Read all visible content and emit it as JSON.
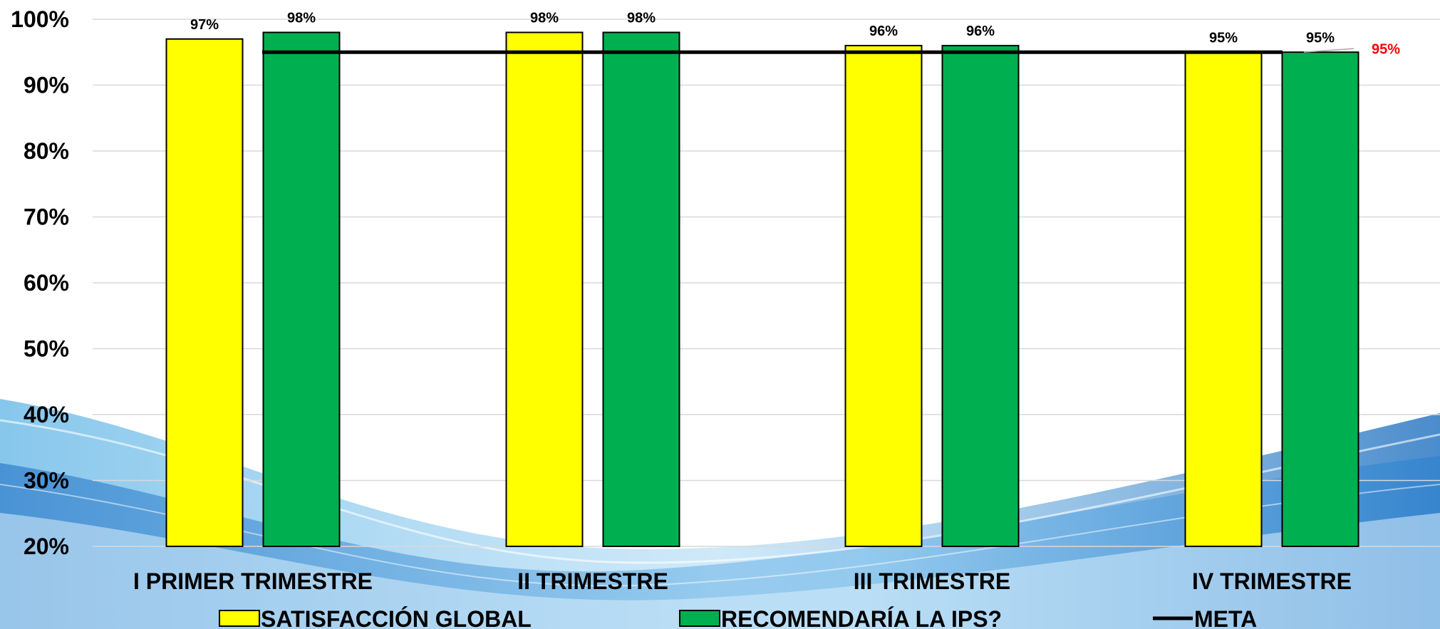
{
  "chart_data": {
    "type": "bar",
    "categories": [
      "I PRIMER TRIMESTRE",
      "II TRIMESTRE",
      "III TRIMESTRE",
      "IV TRIMESTRE"
    ],
    "series": [
      {
        "name": "SATISFACCIÓN GLOBAL",
        "values": [
          97,
          98,
          96,
          95
        ],
        "labels": [
          "97%",
          "98%",
          "96%",
          "95%"
        ],
        "color": "#ffff00"
      },
      {
        "name": "RECOMENDARÍA LA IPS?",
        "values": [
          98,
          98,
          96,
          95
        ],
        "labels": [
          "98%",
          "98%",
          "96%",
          "95%"
        ],
        "color": "#00b050"
      }
    ],
    "meta": {
      "name": "META",
      "value": 95,
      "label": "95%",
      "color": "#000000",
      "label_color": "#ff0000"
    },
    "ylim": [
      20,
      100
    ],
    "yticks": [
      20,
      30,
      40,
      50,
      60,
      70,
      80,
      90,
      100
    ],
    "ytick_labels": [
      "20%",
      "30%",
      "40%",
      "50%",
      "60%",
      "70%",
      "80%",
      "90%",
      "100%"
    ],
    "grid": true,
    "legend_position": "bottom"
  }
}
